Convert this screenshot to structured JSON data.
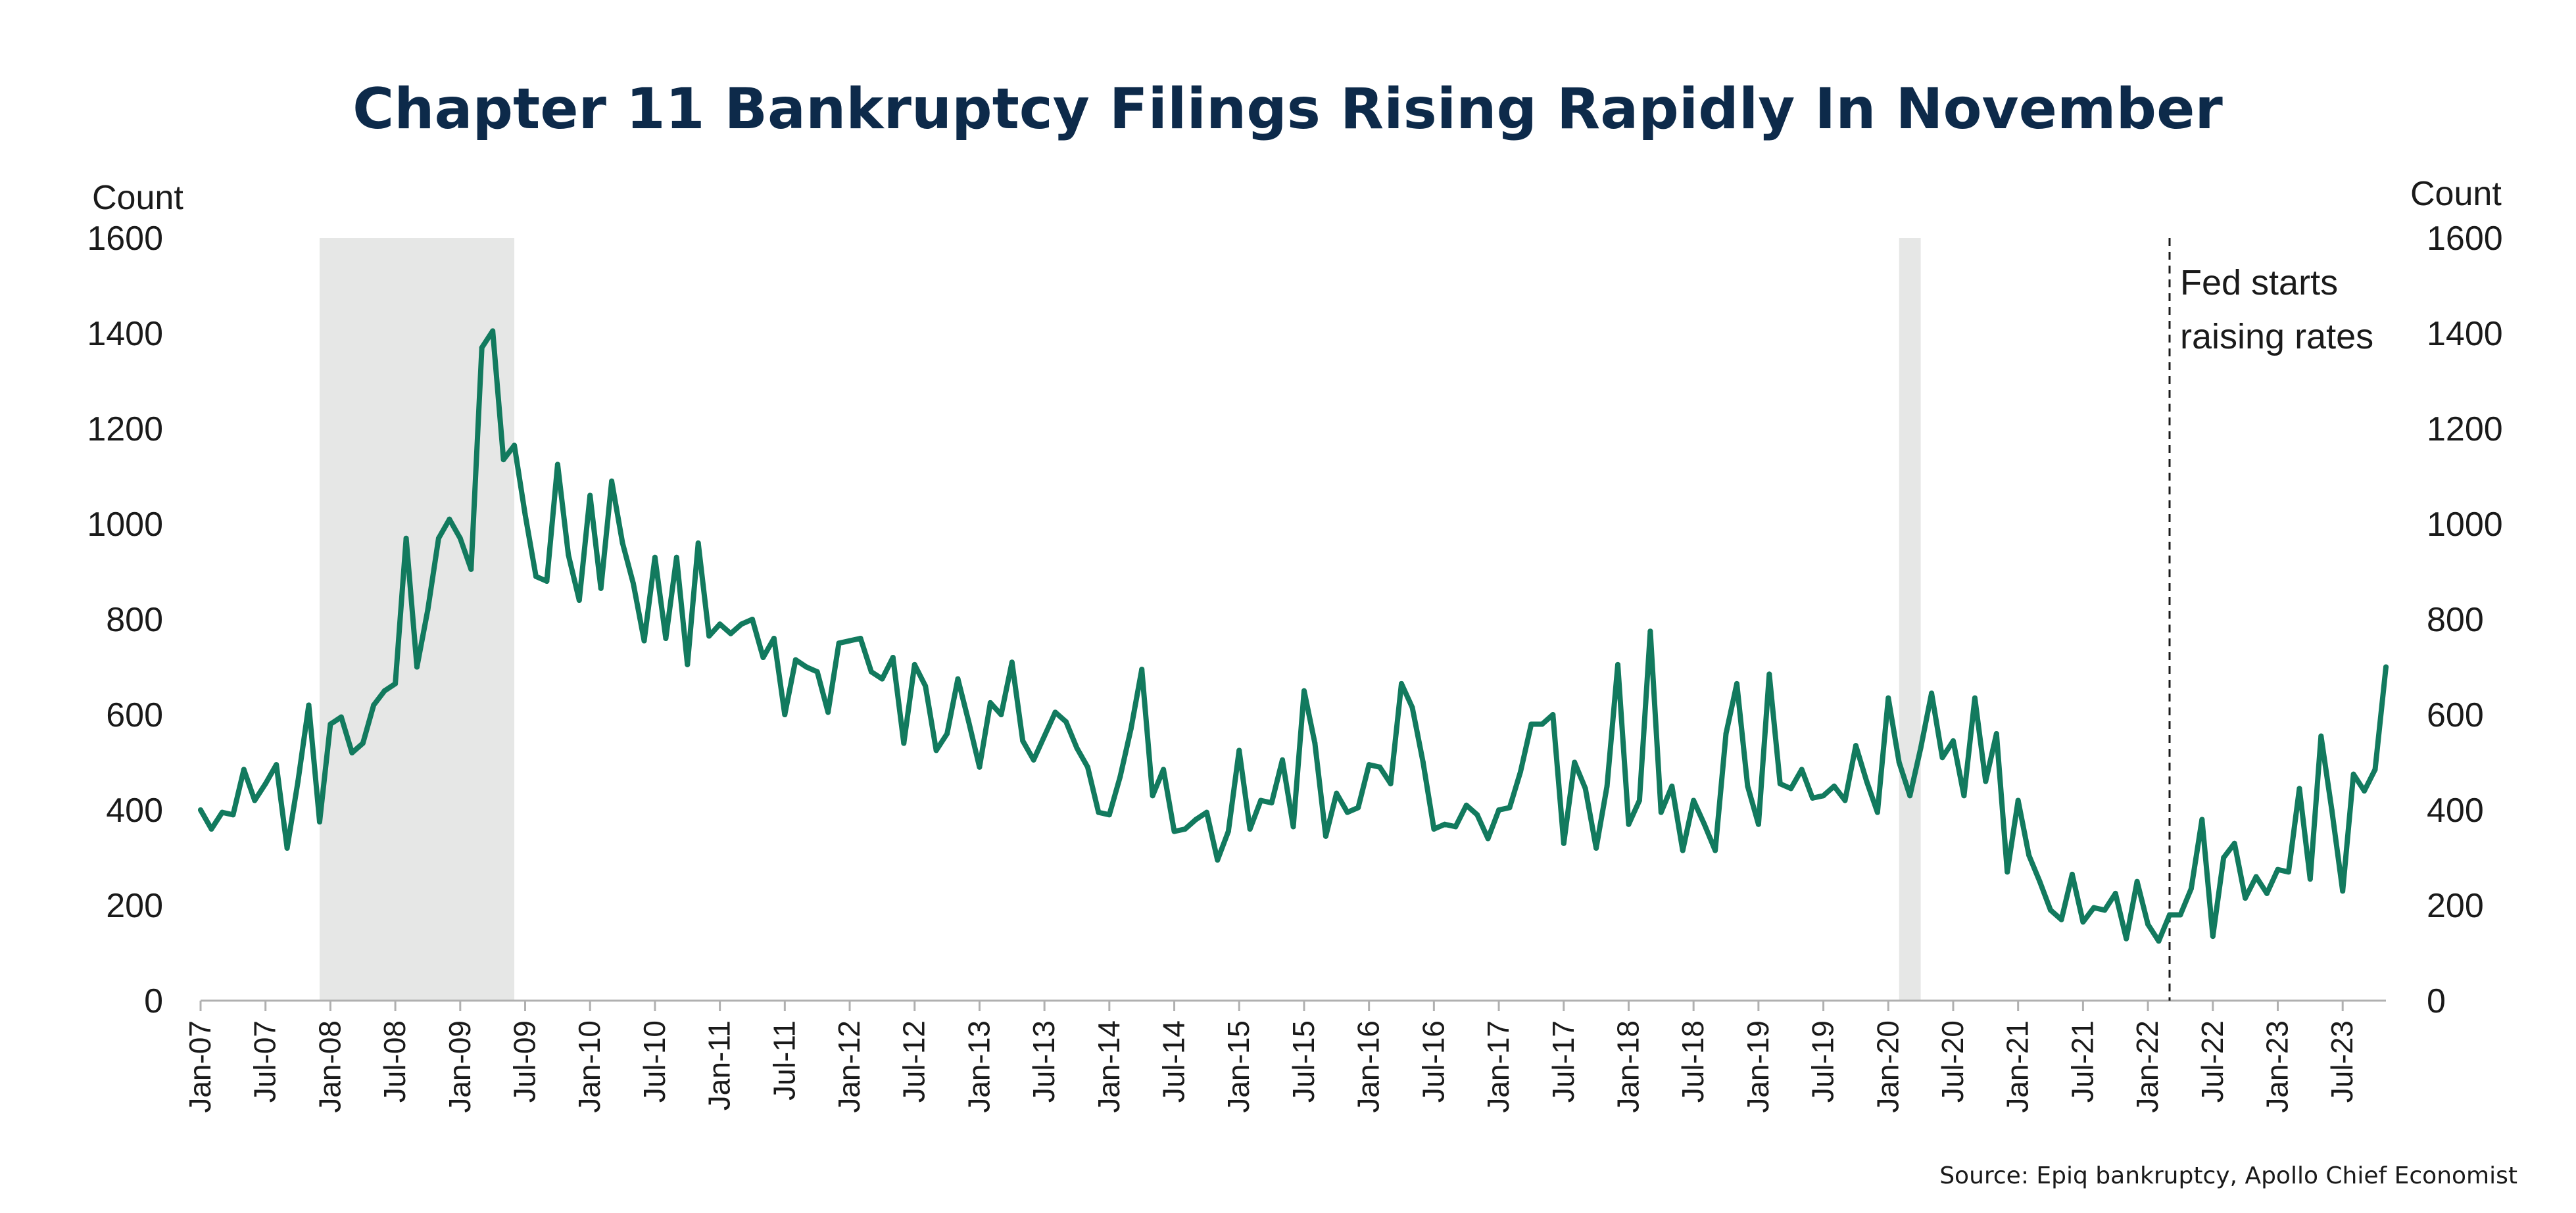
{
  "chart_data": {
    "type": "line",
    "title": "Chapter 11 Bankruptcy Filings Rising Rapidly In November",
    "ylabel_left": "Count",
    "ylabel_right": "Count",
    "ylim": [
      0,
      1600
    ],
    "y_ticks": [
      0,
      200,
      400,
      600,
      800,
      1000,
      1200,
      1400,
      1600
    ],
    "y_tick_labels": [
      "0",
      "200",
      "400",
      "600",
      "800",
      "1000",
      "1200",
      "1400",
      "1600"
    ],
    "x_start": "2007-01",
    "x_end": "2023-11",
    "x_tick_labels": [
      "Jan-07",
      "Jul-07",
      "Jan-08",
      "Jul-08",
      "Jan-09",
      "Jul-09",
      "Jan-10",
      "Jul-10",
      "Jan-11",
      "Jul-11",
      "Jan-12",
      "Jul-12",
      "Jan-13",
      "Jul-13",
      "Jan-14",
      "Jul-14",
      "Jan-15",
      "Jul-15",
      "Jan-16",
      "Jul-16",
      "Jan-17",
      "Jul-17",
      "Jan-18",
      "Jul-18",
      "Jan-19",
      "Jul-19",
      "Jan-20",
      "Jul-20",
      "Jan-21",
      "Jul-21",
      "Jan-22",
      "Jul-22",
      "Jan-23",
      "Jul-23"
    ],
    "recessions": [
      {
        "start": "2007-12",
        "end": "2009-06"
      },
      {
        "start": "2020-02",
        "end": "2020-04"
      }
    ],
    "annotation": {
      "date": "2022-03",
      "line1": "Fed starts",
      "line2": "raising rates"
    },
    "series": [
      {
        "color": "#127a5e",
        "x": [
          "2007-01",
          "2007-02",
          "2007-03",
          "2007-04",
          "2007-05",
          "2007-06",
          "2007-07",
          "2007-08",
          "2007-09",
          "2007-10",
          "2007-11",
          "2007-12",
          "2008-01",
          "2008-02",
          "2008-03",
          "2008-04",
          "2008-05",
          "2008-06",
          "2008-07",
          "2008-08",
          "2008-09",
          "2008-10",
          "2008-11",
          "2008-12",
          "2009-01",
          "2009-02",
          "2009-03",
          "2009-04",
          "2009-05",
          "2009-06",
          "2009-07",
          "2009-08",
          "2009-09",
          "2009-10",
          "2009-11",
          "2009-12",
          "2010-01",
          "2010-02",
          "2010-03",
          "2010-04",
          "2010-05",
          "2010-06",
          "2010-07",
          "2010-08",
          "2010-09",
          "2010-10",
          "2010-11",
          "2010-12",
          "2011-01",
          "2011-02",
          "2011-03",
          "2011-04",
          "2011-05",
          "2011-06",
          "2011-07",
          "2011-08",
          "2011-09",
          "2011-10",
          "2011-11",
          "2011-12",
          "2012-01",
          "2012-02",
          "2012-03",
          "2012-04",
          "2012-05",
          "2012-06",
          "2012-07",
          "2012-08",
          "2012-09",
          "2012-10",
          "2012-11",
          "2012-12",
          "2013-01",
          "2013-02",
          "2013-03",
          "2013-04",
          "2013-05",
          "2013-06",
          "2013-07",
          "2013-08",
          "2013-09",
          "2013-10",
          "2013-11",
          "2013-12",
          "2014-01",
          "2014-02",
          "2014-03",
          "2014-04",
          "2014-05",
          "2014-06",
          "2014-07",
          "2014-08",
          "2014-09",
          "2014-10",
          "2014-11",
          "2014-12",
          "2015-01",
          "2015-02",
          "2015-03",
          "2015-04",
          "2015-05",
          "2015-06",
          "2015-07",
          "2015-08",
          "2015-09",
          "2015-10",
          "2015-11",
          "2015-12",
          "2016-01",
          "2016-02",
          "2016-03",
          "2016-04",
          "2016-05",
          "2016-06",
          "2016-07",
          "2016-08",
          "2016-09",
          "2016-10",
          "2016-11",
          "2016-12",
          "2017-01",
          "2017-02",
          "2017-03",
          "2017-04",
          "2017-05",
          "2017-06",
          "2017-07",
          "2017-08",
          "2017-09",
          "2017-10",
          "2017-11",
          "2017-12",
          "2018-01",
          "2018-02",
          "2018-03",
          "2018-04",
          "2018-05",
          "2018-06",
          "2018-07",
          "2018-08",
          "2018-09",
          "2018-10",
          "2018-11",
          "2018-12",
          "2019-01",
          "2019-02",
          "2019-03",
          "2019-04",
          "2019-05",
          "2019-06",
          "2019-07",
          "2019-08",
          "2019-09",
          "2019-10",
          "2019-11",
          "2019-12",
          "2020-01",
          "2020-02",
          "2020-03",
          "2020-04",
          "2020-05",
          "2020-06",
          "2020-07",
          "2020-08",
          "2020-09",
          "2020-10",
          "2020-11",
          "2020-12",
          "2021-01",
          "2021-02",
          "2021-03",
          "2021-04",
          "2021-05",
          "2021-06",
          "2021-07",
          "2021-08",
          "2021-09",
          "2021-10",
          "2021-11",
          "2021-12",
          "2022-01",
          "2022-02",
          "2022-03",
          "2022-04",
          "2022-05",
          "2022-06",
          "2022-07",
          "2022-08",
          "2022-09",
          "2022-10",
          "2022-11",
          "2022-12",
          "2023-01",
          "2023-02",
          "2023-03",
          "2023-04",
          "2023-05",
          "2023-06",
          "2023-07",
          "2023-08",
          "2023-09",
          "2023-10",
          "2023-11"
        ],
        "values": [
          400,
          360,
          395,
          390,
          485,
          420,
          455,
          495,
          320,
          460,
          620,
          375,
          580,
          595,
          520,
          540,
          620,
          650,
          665,
          970,
          700,
          820,
          970,
          1010,
          970,
          905,
          1370,
          1405,
          1135,
          1165,
          1020,
          890,
          880,
          1125,
          935,
          840,
          1060,
          865,
          1090,
          960,
          875,
          755,
          930,
          760,
          930,
          705,
          960,
          765,
          790,
          770,
          790,
          800,
          720,
          760,
          600,
          715,
          700,
          690,
          605,
          750,
          755,
          760,
          690,
          675,
          720,
          540,
          705,
          660,
          525,
          560,
          675,
          585,
          490,
          625,
          600,
          710,
          545,
          505,
          555,
          605,
          585,
          530,
          490,
          395,
          390,
          470,
          570,
          695,
          430,
          485,
          355,
          360,
          380,
          395,
          295,
          355,
          525,
          360,
          420,
          415,
          505,
          365,
          650,
          540,
          345,
          435,
          395,
          405,
          495,
          490,
          455,
          665,
          615,
          500,
          360,
          370,
          365,
          410,
          390,
          340,
          400,
          405,
          480,
          580,
          580,
          600,
          330,
          500,
          445,
          320,
          450,
          705,
          370,
          420,
          775,
          395,
          450,
          315,
          420,
          370,
          315,
          560,
          665,
          450,
          370,
          685,
          455,
          445,
          485,
          425,
          430,
          450,
          420,
          535,
          460,
          395,
          635,
          500,
          430,
          530,
          645,
          510,
          545,
          430,
          635,
          460,
          560,
          270,
          420,
          305,
          250,
          190,
          170,
          265,
          165,
          195,
          190,
          225,
          130,
          250,
          160,
          125,
          180,
          180,
          235,
          380,
          135,
          300,
          330,
          215,
          260,
          225,
          275,
          270,
          445,
          255,
          555,
          400,
          230,
          475,
          440,
          485,
          700
        ]
      }
    ],
    "source": "Source: Epiq bankruptcy, Apollo Chief Economist"
  }
}
